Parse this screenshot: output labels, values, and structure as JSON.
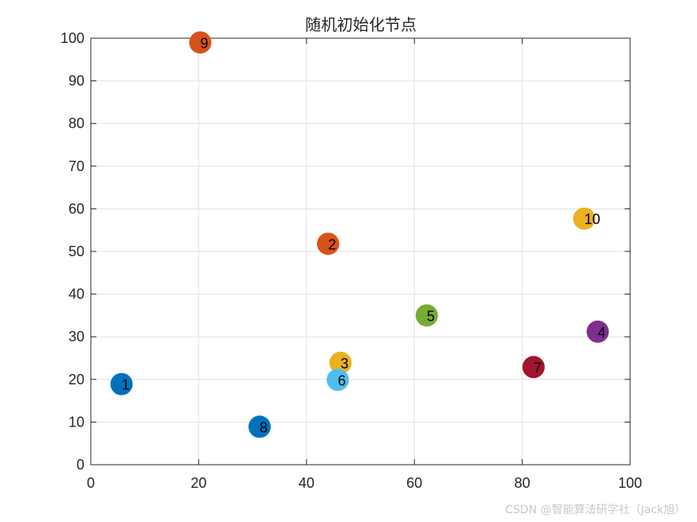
{
  "chart_data": {
    "type": "scatter",
    "title": "随机初始化节点",
    "xlabel": "",
    "ylabel": "",
    "xlim": [
      0,
      100
    ],
    "ylim": [
      0,
      100
    ],
    "xticks": [
      "0",
      "20",
      "40",
      "60",
      "80",
      "100"
    ],
    "yticks": [
      "0",
      "10",
      "20",
      "30",
      "40",
      "50",
      "60",
      "70",
      "80",
      "90",
      "100"
    ],
    "grid": true,
    "points": [
      {
        "label": "1",
        "x": 5.7,
        "y": 18.9,
        "color": "#0072BD"
      },
      {
        "label": "2",
        "x": 44.0,
        "y": 51.8,
        "color": "#D95319"
      },
      {
        "label": "3",
        "x": 46.3,
        "y": 23.9,
        "color": "#EDB120"
      },
      {
        "label": "4",
        "x": 94.0,
        "y": 31.2,
        "color": "#7E2F8E"
      },
      {
        "label": "5",
        "x": 62.3,
        "y": 35.0,
        "color": "#77AC30"
      },
      {
        "label": "6",
        "x": 45.8,
        "y": 19.9,
        "color": "#4DBEEE"
      },
      {
        "label": "7",
        "x": 82.1,
        "y": 22.9,
        "color": "#A2142F"
      },
      {
        "label": "8",
        "x": 31.3,
        "y": 8.9,
        "color": "#0072BD"
      },
      {
        "label": "9",
        "x": 20.3,
        "y": 99.0,
        "color": "#D95319"
      },
      {
        "label": "10",
        "x": 91.5,
        "y": 57.7,
        "color": "#EDB120"
      }
    ]
  },
  "watermark": "CSDN @智能算法研学社（Jack旭）"
}
